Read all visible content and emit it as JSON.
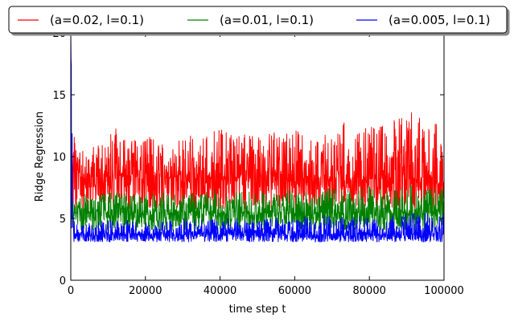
{
  "chart_data": {
    "type": "line",
    "title": "",
    "xlabel": "time step t",
    "ylabel": "Ridge Regression",
    "xlim": [
      0,
      100000
    ],
    "ylim": [
      0,
      20
    ],
    "xticks": [
      0,
      20000,
      40000,
      60000,
      80000,
      100000
    ],
    "xtick_labels": [
      "0",
      "20000",
      "40000",
      "60000",
      "80000",
      "100000"
    ],
    "yticks": [
      0,
      5,
      10,
      15,
      20
    ],
    "ytick_labels": [
      "0",
      "5",
      "10",
      "15",
      "20"
    ],
    "grid": false,
    "legend_position": "top",
    "series": [
      {
        "name": "(a=0.02, l=0.1)",
        "color": "#ff0000",
        "x": [
          0,
          500,
          1000,
          2000,
          3000,
          5000,
          8000,
          12000,
          16000,
          20000,
          25000,
          30000,
          35000,
          40000,
          45000,
          50000,
          55000,
          60000,
          62000,
          65000,
          70000,
          75000,
          80000,
          85000,
          90000,
          92500,
          95000,
          98000,
          100000
        ],
        "low": [
          9.5,
          5.7,
          5.6,
          5.7,
          5.8,
          5.6,
          5.7,
          5.6,
          5.7,
          5.6,
          5.7,
          5.6,
          5.7,
          5.6,
          5.7,
          5.6,
          5.7,
          5.6,
          5.7,
          5.6,
          5.7,
          5.6,
          5.7,
          5.6,
          5.7,
          5.6,
          5.7,
          5.6,
          5.7
        ],
        "high": [
          10.5,
          11.0,
          12.2,
          11.0,
          11.3,
          11.0,
          11.2,
          12.3,
          11.4,
          11.8,
          11.0,
          11.6,
          11.8,
          12.4,
          12.0,
          11.5,
          12.1,
          12.3,
          12.0,
          11.6,
          12.0,
          13.4,
          12.4,
          12.8,
          13.5,
          14.2,
          12.2,
          12.9,
          10.8
        ],
        "mean": [
          10.0,
          8.4,
          8.3,
          8.3,
          8.4,
          8.3,
          8.3,
          8.4,
          8.3,
          8.4,
          8.3,
          8.4,
          8.3,
          8.4,
          8.3,
          8.4,
          8.3,
          8.4,
          8.3,
          8.4,
          8.3,
          8.4,
          8.3,
          8.4,
          8.3,
          8.4,
          8.3,
          8.4,
          8.3
        ]
      },
      {
        "name": "(a=0.01, l=0.1)",
        "color": "#008000",
        "x": [
          0,
          500,
          1000,
          2000,
          5000,
          10000,
          15000,
          20000,
          25000,
          30000,
          35000,
          40000,
          45000,
          50000,
          55000,
          60000,
          65000,
          70000,
          75000,
          80000,
          85000,
          90000,
          95000,
          100000
        ],
        "low": [
          8.0,
          4.1,
          4.0,
          4.1,
          4.0,
          4.1,
          4.0,
          4.1,
          4.0,
          4.1,
          4.0,
          4.1,
          4.0,
          4.1,
          4.0,
          4.1,
          4.0,
          4.1,
          4.0,
          4.1,
          4.0,
          4.1,
          4.0,
          4.1
        ],
        "high": [
          8.0,
          7.5,
          7.6,
          6.9,
          7.0,
          7.2,
          7.1,
          7.0,
          7.1,
          7.0,
          7.2,
          7.4,
          7.2,
          7.3,
          7.1,
          7.4,
          7.2,
          7.5,
          7.2,
          7.6,
          7.3,
          7.8,
          7.4,
          7.5
        ],
        "mean": [
          8.0,
          5.5,
          5.4,
          5.4,
          5.5,
          5.4,
          5.5,
          5.4,
          5.5,
          5.4,
          5.5,
          5.4,
          5.5,
          5.4,
          5.5,
          5.4,
          5.5,
          5.4,
          5.5,
          5.4,
          5.5,
          5.4,
          5.5,
          5.4
        ]
      },
      {
        "name": "(a=0.005, l=0.1)",
        "color": "#0000ff",
        "x": [
          0,
          200,
          500,
          1000,
          2000,
          5000,
          10000,
          20000,
          30000,
          40000,
          50000,
          60000,
          70000,
          80000,
          90000,
          100000
        ],
        "low": [
          20.0,
          3.2,
          3.1,
          3.1,
          3.1,
          3.1,
          3.1,
          3.1,
          3.1,
          3.1,
          3.1,
          3.1,
          3.1,
          3.1,
          3.1,
          3.1
        ],
        "high": [
          20.0,
          19.0,
          5.5,
          4.8,
          4.6,
          4.7,
          4.9,
          4.8,
          5.0,
          5.1,
          4.9,
          5.2,
          5.3,
          5.0,
          5.4,
          5.5
        ],
        "mean": [
          20.0,
          8.0,
          3.8,
          3.7,
          3.7,
          3.7,
          3.7,
          3.7,
          3.7,
          3.7,
          3.7,
          3.7,
          3.7,
          3.7,
          3.7,
          3.7
        ]
      }
    ]
  }
}
